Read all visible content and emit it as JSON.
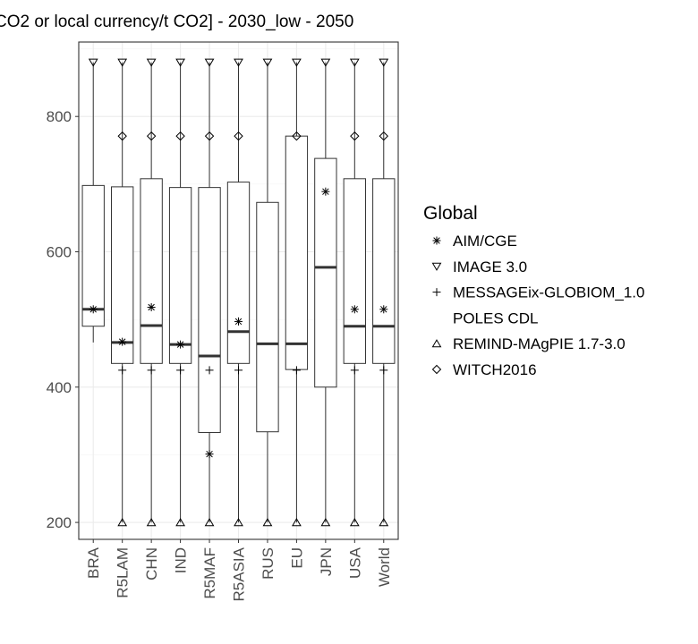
{
  "chart_data": {
    "type": "boxplot",
    "title": "CO2 or local currency/t CO2] - 2030_low - 2050",
    "categories": [
      "BRA",
      "R5LAM",
      "CHN",
      "IND",
      "R5MAF",
      "R5ASIA",
      "RUS",
      "EU",
      "JPN",
      "USA",
      "World"
    ],
    "y_ticks": [
      200,
      400,
      600,
      800
    ],
    "ylim": [
      175,
      910
    ],
    "grid": true,
    "legend": {
      "title": "Global",
      "placement": "right",
      "entries": [
        {
          "name": "AIM/CGE",
          "marker": "asterisk-icon"
        },
        {
          "name": "IMAGE 3.0",
          "marker": "triangle-down-icon"
        },
        {
          "name": "MESSAGEix-GLOBIOM_1.0",
          "marker": "plus-icon"
        },
        {
          "name": "POLES CDL",
          "marker": "none"
        },
        {
          "name": "REMIND-MAgPIE 1.7-3.0",
          "marker": "triangle-up-icon"
        },
        {
          "name": "WITCH2016",
          "marker": "diamond-icon"
        }
      ]
    },
    "boxes": [
      {
        "category": "BRA",
        "whisker_low": 466,
        "q1": 490,
        "median": 515,
        "q3": 698,
        "whisker_high": 880
      },
      {
        "category": "R5LAM",
        "whisker_low": 200,
        "q1": 435,
        "median": 466,
        "q3": 696,
        "whisker_high": 880
      },
      {
        "category": "CHN",
        "whisker_low": 200,
        "q1": 435,
        "median": 491,
        "q3": 708,
        "whisker_high": 880
      },
      {
        "category": "IND",
        "whisker_low": 200,
        "q1": 435,
        "median": 463,
        "q3": 695,
        "whisker_high": 880
      },
      {
        "category": "R5MAF",
        "whisker_low": 200,
        "q1": 333,
        "median": 446,
        "q3": 695,
        "whisker_high": 880
      },
      {
        "category": "R5ASIA",
        "whisker_low": 200,
        "q1": 435,
        "median": 482,
        "q3": 703,
        "whisker_high": 880
      },
      {
        "category": "RUS",
        "whisker_low": 200,
        "q1": 334,
        "median": 464,
        "q3": 673,
        "whisker_high": 880
      },
      {
        "category": "EU",
        "whisker_low": 200,
        "q1": 426,
        "median": 464,
        "q3": 771,
        "whisker_high": 880
      },
      {
        "category": "JPN",
        "whisker_low": 200,
        "q1": 400,
        "median": 577,
        "q3": 738,
        "whisker_high": 880
      },
      {
        "category": "USA",
        "whisker_low": 200,
        "q1": 435,
        "median": 490,
        "q3": 708,
        "whisker_high": 880
      },
      {
        "category": "World",
        "whisker_low": 200,
        "q1": 435,
        "median": 490,
        "q3": 708,
        "whisker_high": 880
      }
    ],
    "points": [
      {
        "category": "BRA",
        "model": "AIM/CGE",
        "y": 515
      },
      {
        "category": "BRA",
        "model": "IMAGE 3.0",
        "y": 880
      },
      {
        "category": "R5LAM",
        "model": "AIM/CGE",
        "y": 467
      },
      {
        "category": "R5LAM",
        "model": "IMAGE 3.0",
        "y": 880
      },
      {
        "category": "R5LAM",
        "model": "MESSAGEix-GLOBIOM_1.0",
        "y": 425
      },
      {
        "category": "R5LAM",
        "model": "REMIND-MAgPIE 1.7-3.0",
        "y": 200
      },
      {
        "category": "R5LAM",
        "model": "WITCH2016",
        "y": 771
      },
      {
        "category": "CHN",
        "model": "AIM/CGE",
        "y": 518
      },
      {
        "category": "CHN",
        "model": "IMAGE 3.0",
        "y": 880
      },
      {
        "category": "CHN",
        "model": "MESSAGEix-GLOBIOM_1.0",
        "y": 425
      },
      {
        "category": "CHN",
        "model": "REMIND-MAgPIE 1.7-3.0",
        "y": 200
      },
      {
        "category": "CHN",
        "model": "WITCH2016",
        "y": 771
      },
      {
        "category": "IND",
        "model": "AIM/CGE",
        "y": 463
      },
      {
        "category": "IND",
        "model": "IMAGE 3.0",
        "y": 880
      },
      {
        "category": "IND",
        "model": "MESSAGEix-GLOBIOM_1.0",
        "y": 425
      },
      {
        "category": "IND",
        "model": "REMIND-MAgPIE 1.7-3.0",
        "y": 200
      },
      {
        "category": "IND",
        "model": "WITCH2016",
        "y": 771
      },
      {
        "category": "R5MAF",
        "model": "AIM/CGE",
        "y": 301
      },
      {
        "category": "R5MAF",
        "model": "IMAGE 3.0",
        "y": 880
      },
      {
        "category": "R5MAF",
        "model": "MESSAGEix-GLOBIOM_1.0",
        "y": 425
      },
      {
        "category": "R5MAF",
        "model": "REMIND-MAgPIE 1.7-3.0",
        "y": 200
      },
      {
        "category": "R5MAF",
        "model": "WITCH2016",
        "y": 771
      },
      {
        "category": "R5ASIA",
        "model": "AIM/CGE",
        "y": 497
      },
      {
        "category": "R5ASIA",
        "model": "IMAGE 3.0",
        "y": 880
      },
      {
        "category": "R5ASIA",
        "model": "MESSAGEix-GLOBIOM_1.0",
        "y": 425
      },
      {
        "category": "R5ASIA",
        "model": "REMIND-MAgPIE 1.7-3.0",
        "y": 200
      },
      {
        "category": "R5ASIA",
        "model": "WITCH2016",
        "y": 771
      },
      {
        "category": "RUS",
        "model": "IMAGE 3.0",
        "y": 880
      },
      {
        "category": "RUS",
        "model": "REMIND-MAgPIE 1.7-3.0",
        "y": 200
      },
      {
        "category": "EU",
        "model": "IMAGE 3.0",
        "y": 880
      },
      {
        "category": "EU",
        "model": "MESSAGEix-GLOBIOM_1.0",
        "y": 425
      },
      {
        "category": "EU",
        "model": "REMIND-MAgPIE 1.7-3.0",
        "y": 200
      },
      {
        "category": "EU",
        "model": "WITCH2016",
        "y": 771
      },
      {
        "category": "JPN",
        "model": "AIM/CGE",
        "y": 689
      },
      {
        "category": "JPN",
        "model": "IMAGE 3.0",
        "y": 880
      },
      {
        "category": "JPN",
        "model": "REMIND-MAgPIE 1.7-3.0",
        "y": 200
      },
      {
        "category": "USA",
        "model": "AIM/CGE",
        "y": 515
      },
      {
        "category": "USA",
        "model": "IMAGE 3.0",
        "y": 880
      },
      {
        "category": "USA",
        "model": "MESSAGEix-GLOBIOM_1.0",
        "y": 425
      },
      {
        "category": "USA",
        "model": "REMIND-MAgPIE 1.7-3.0",
        "y": 200
      },
      {
        "category": "USA",
        "model": "WITCH2016",
        "y": 771
      },
      {
        "category": "World",
        "model": "AIM/CGE",
        "y": 515
      },
      {
        "category": "World",
        "model": "IMAGE 3.0",
        "y": 880
      },
      {
        "category": "World",
        "model": "MESSAGEix-GLOBIOM_1.0",
        "y": 425
      },
      {
        "category": "World",
        "model": "REMIND-MAgPIE 1.7-3.0",
        "y": 200
      },
      {
        "category": "World",
        "model": "WITCH2016",
        "y": 771
      }
    ]
  }
}
